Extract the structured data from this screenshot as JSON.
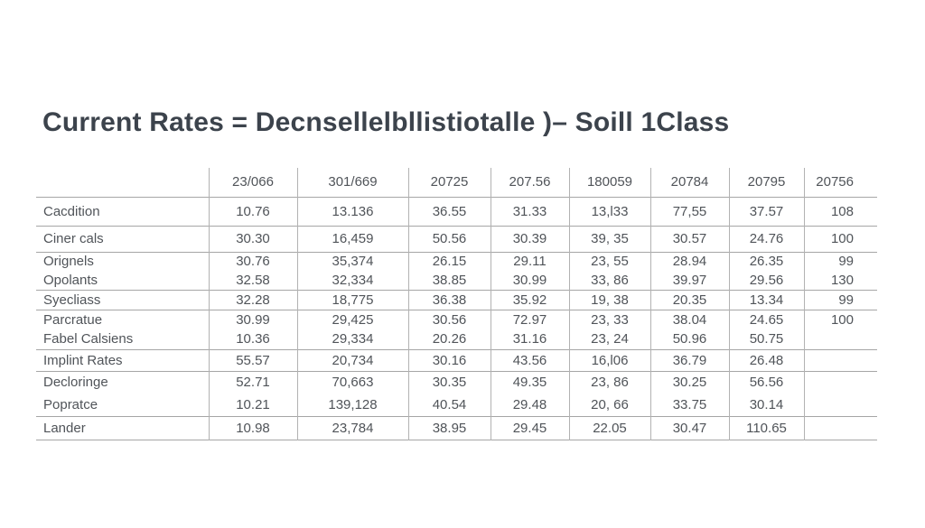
{
  "title": "Current Rates = Decnsellelbllistiotalle )– Soill 1Class",
  "table": {
    "columns": [
      "",
      "23/066",
      "301/669",
      "20725",
      "207.56",
      "180059",
      "20784",
      "20795",
      "20756"
    ],
    "groups": [
      {
        "rows": [
          {
            "label": "Cacdition",
            "values": [
              "10.76",
              "13.136",
              "36.55",
              "31.33",
              "13,l33",
              "77,55",
              "37.57",
              "108"
            ]
          }
        ]
      },
      {
        "rows": [
          {
            "label": "Ciner cals",
            "values": [
              "30.30",
              "16,459",
              "50.56",
              "30.39",
              "39, 35",
              "30.57",
              "24.76",
              "100"
            ]
          }
        ]
      },
      {
        "rows": [
          {
            "label": "Orignels",
            "values": [
              "30.76",
              "35,374",
              "26.15",
              "29.11",
              "23, 55",
              "28.94",
              "26.35",
              "99"
            ]
          },
          {
            "label": "Opolants",
            "values": [
              "32.58",
              "32,334",
              "38.85",
              "30.99",
              "33, 86",
              "39.97",
              "29.56",
              "130"
            ]
          }
        ]
      },
      {
        "rows": [
          {
            "label": "Syecliass",
            "values": [
              "32.28",
              "18,775",
              "36.38",
              "35.92",
              "19, 38",
              "20.35",
              "13.34",
              "99"
            ]
          }
        ]
      },
      {
        "rows": [
          {
            "label": "Parcratue",
            "values": [
              "30.99",
              "29,425",
              "30.56",
              "72.97",
              "23, 33",
              "38.04",
              "24.65",
              "100"
            ]
          },
          {
            "label": "Fabel Calsiens",
            "values": [
              "10.36",
              "29,334",
              "20.26",
              "31.16",
              "23, 24",
              "50.96",
              "50.75",
              ""
            ]
          }
        ]
      },
      {
        "rows": [
          {
            "label": "Implint Rates",
            "values": [
              "55.57",
              "20,734",
              "30.16",
              "43.56",
              "16,l06",
              "36.79",
              "26.48",
              ""
            ]
          }
        ]
      },
      {
        "rows": [
          {
            "label": "Decloringe",
            "values": [
              "52.71",
              "70,663",
              "30.35",
              "49.35",
              "23, 86",
              "30.25",
              "56.56",
              ""
            ]
          },
          {
            "label": "Popratce",
            "values": [
              "10.21",
              "139,128",
              "40.54",
              "29.48",
              "20, 66",
              "33.75",
              "30.14",
              ""
            ]
          }
        ]
      },
      {
        "rows": [
          {
            "label": "Lander",
            "values": [
              "10.98",
              "23,784",
              "38.95",
              "29.45",
              "22.05",
              "30.47",
              "110.65",
              ""
            ]
          }
        ]
      }
    ]
  }
}
